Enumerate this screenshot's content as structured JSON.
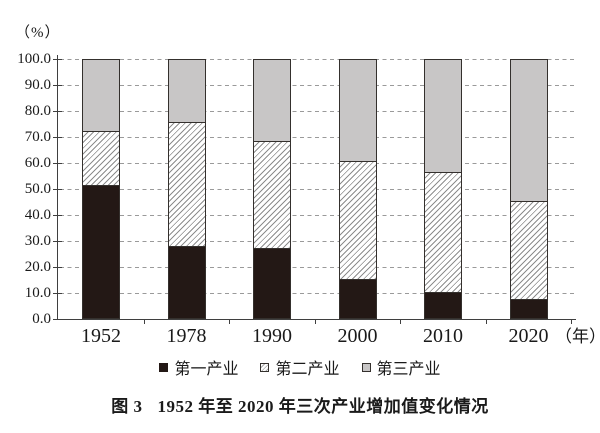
{
  "chart_data": {
    "type": "bar",
    "stacked": true,
    "unit_y": "（%）",
    "unit_x": "（年）",
    "categories": [
      "1952",
      "1978",
      "1990",
      "2000",
      "2010",
      "2020"
    ],
    "series": [
      {
        "name": "第一产业",
        "pattern": "solid-black",
        "color": "#231815",
        "values": [
          51.5,
          28.0,
          27.0,
          15.0,
          10.0,
          7.5
        ]
      },
      {
        "name": "第二产业",
        "pattern": "diagonal-hatch",
        "color": "#8d8d8d",
        "values": [
          21.0,
          48.0,
          41.5,
          46.0,
          46.5,
          38.0
        ]
      },
      {
        "name": "第三产业",
        "pattern": "solid-gray",
        "color": "#c8c6c6",
        "values": [
          27.5,
          24.0,
          31.5,
          39.0,
          43.5,
          54.5
        ]
      }
    ],
    "ylim": [
      0,
      100
    ],
    "ytick_labels": [
      "100.0",
      "90.0",
      "80.0",
      "70.0",
      "60.0",
      "50.0",
      "40.0",
      "30.0",
      "20.0",
      "10.0",
      "0.0"
    ],
    "grid": "horizontal-dashed",
    "legend_position": "bottom",
    "axis_color": "#3f3f3f",
    "grid_color": "#9a9a9a"
  },
  "caption": {
    "figure_label": "图 3",
    "title": "1952 年至 2020 年三次产业增加值变化情况"
  }
}
